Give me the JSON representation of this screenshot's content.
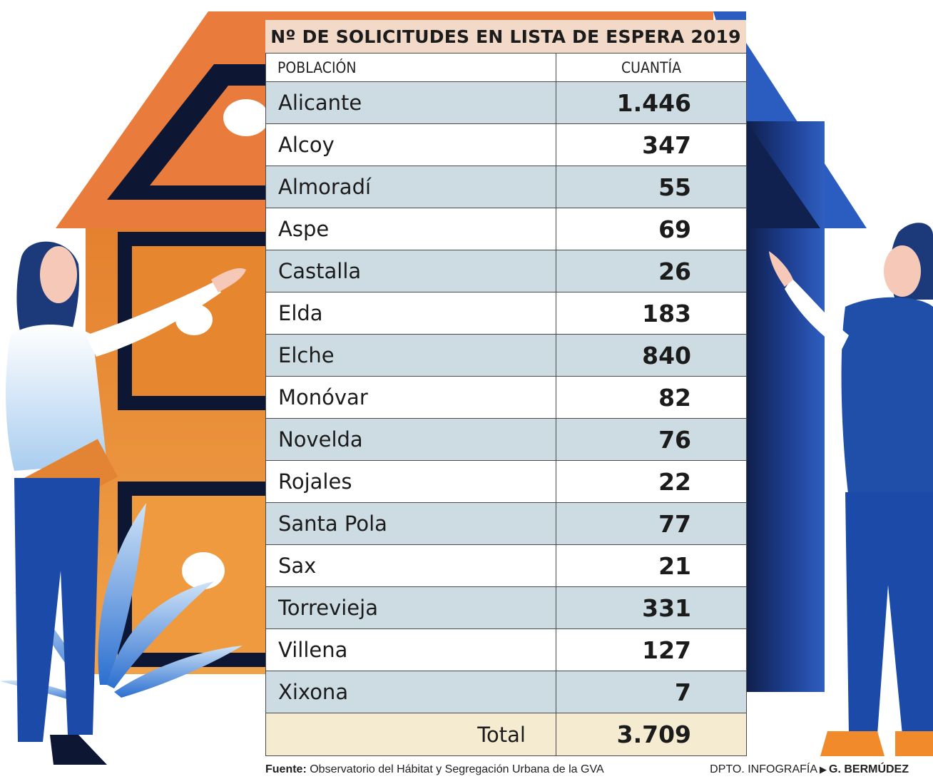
{
  "chart_data": {
    "type": "table",
    "title": "Nº DE SOLICITUDES EN LISTA DE ESPERA 2019",
    "columns": [
      "POBLACIÓN",
      "CUANTÍA"
    ],
    "rows": [
      {
        "city": "Alicante",
        "value": "1.446"
      },
      {
        "city": "Alcoy",
        "value": "347"
      },
      {
        "city": "Almoradí",
        "value": "55"
      },
      {
        "city": "Aspe",
        "value": "69"
      },
      {
        "city": "Castalla",
        "value": "26"
      },
      {
        "city": "Elda",
        "value": "183"
      },
      {
        "city": "Elche",
        "value": "840"
      },
      {
        "city": "Monóvar",
        "value": "82"
      },
      {
        "city": "Novelda",
        "value": "76"
      },
      {
        "city": "Rojales",
        "value": "22"
      },
      {
        "city": "Santa Pola",
        "value": "77"
      },
      {
        "city": "Sax",
        "value": "21"
      },
      {
        "city": "Torrevieja",
        "value": "331"
      },
      {
        "city": "Villena",
        "value": "127"
      },
      {
        "city": "Xixona",
        "value": "7"
      }
    ],
    "total": {
      "label": "Total",
      "value": "3.709"
    }
  },
  "footer": {
    "source_label": "Fuente:",
    "source_text": "Observatorio del Hábitat y Segregación Urbana de la GVA",
    "dept": "DPTO. INFOGRAFÍA",
    "author": "G. BERMÚDEZ"
  },
  "colors": {
    "title_bg": "#f3d9c8",
    "row_shade": "#cddbe3",
    "total_bg": "#f4ebd1",
    "house_orange": "#e97b3c",
    "house_blue": "#1f4fa8"
  }
}
